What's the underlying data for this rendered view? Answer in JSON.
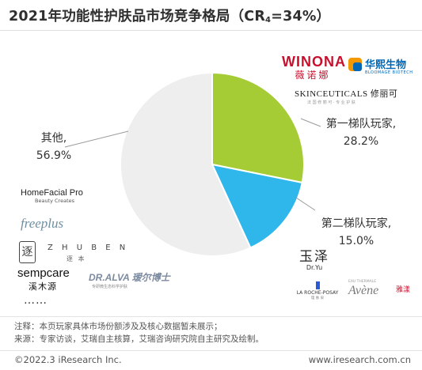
{
  "title": {
    "main": "2021年功能性护肤品市场竞争格局（CR",
    "sub": "4",
    "tail": "=34%）"
  },
  "chart_data": {
    "type": "pie",
    "title": "2021年功能性护肤品市场竞争格局（CR4=34%）",
    "slices": [
      {
        "name": "第一梯队玩家,",
        "value": 28.2,
        "label": "28.2%",
        "color": "#a5cc35"
      },
      {
        "name": "第二梯队玩家,",
        "value": 15.0,
        "label": "15.0%",
        "color": "#2fb7ec"
      },
      {
        "name": "其他,",
        "value": 56.9,
        "label": "56.9%",
        "color": "#eeeeee"
      }
    ],
    "start": "12 o'clock",
    "direction": "clockwise"
  },
  "logos": {
    "winona": {
      "en": "WINONA",
      "cn": "薇诺娜"
    },
    "bloomage": {
      "cn": "华熙生物",
      "en": "BLOOMAGE BIOTECH"
    },
    "skinceuticals": {
      "en": "SKINCEUTICALS 修丽可",
      "sub": "法 国 修 丽 可 · 专 业 护 肤"
    },
    "homefacialpro": {
      "name": "HomeFacial Pro",
      "tag": "Beauty Creates"
    },
    "freeplus": {
      "name": "freeplus"
    },
    "zhuben": {
      "mark": "逐",
      "en": "Z H U B E N",
      "cn": "逐 本"
    },
    "sempcare": {
      "en": "sempcare",
      "cn": "溪木源"
    },
    "dralva": {
      "en": "DR.ALVA 瑷尔博士",
      "sub": "专研微生态科学护肤"
    },
    "yuze": {
      "cn": "玉泽",
      "en": "Dr.Yu"
    },
    "laroche": {
      "name": "LA ROCHE-POSAY",
      "sub": "理 肤 泉"
    },
    "avene": {
      "top": "EAU THERMALE",
      "name": "Avène",
      "cn": "雅漾"
    },
    "more": "……"
  },
  "notes": {
    "note": "注释：本页玩家具体市场份额涉及及核心数据暂未展示；",
    "source": "来源：专家访谈，艾瑞自主核算，艾瑞咨询研究院自主研究及绘制。"
  },
  "footer": {
    "copyright": "©2022.3 iResearch Inc.",
    "url": "www.iresearch.com.cn"
  }
}
